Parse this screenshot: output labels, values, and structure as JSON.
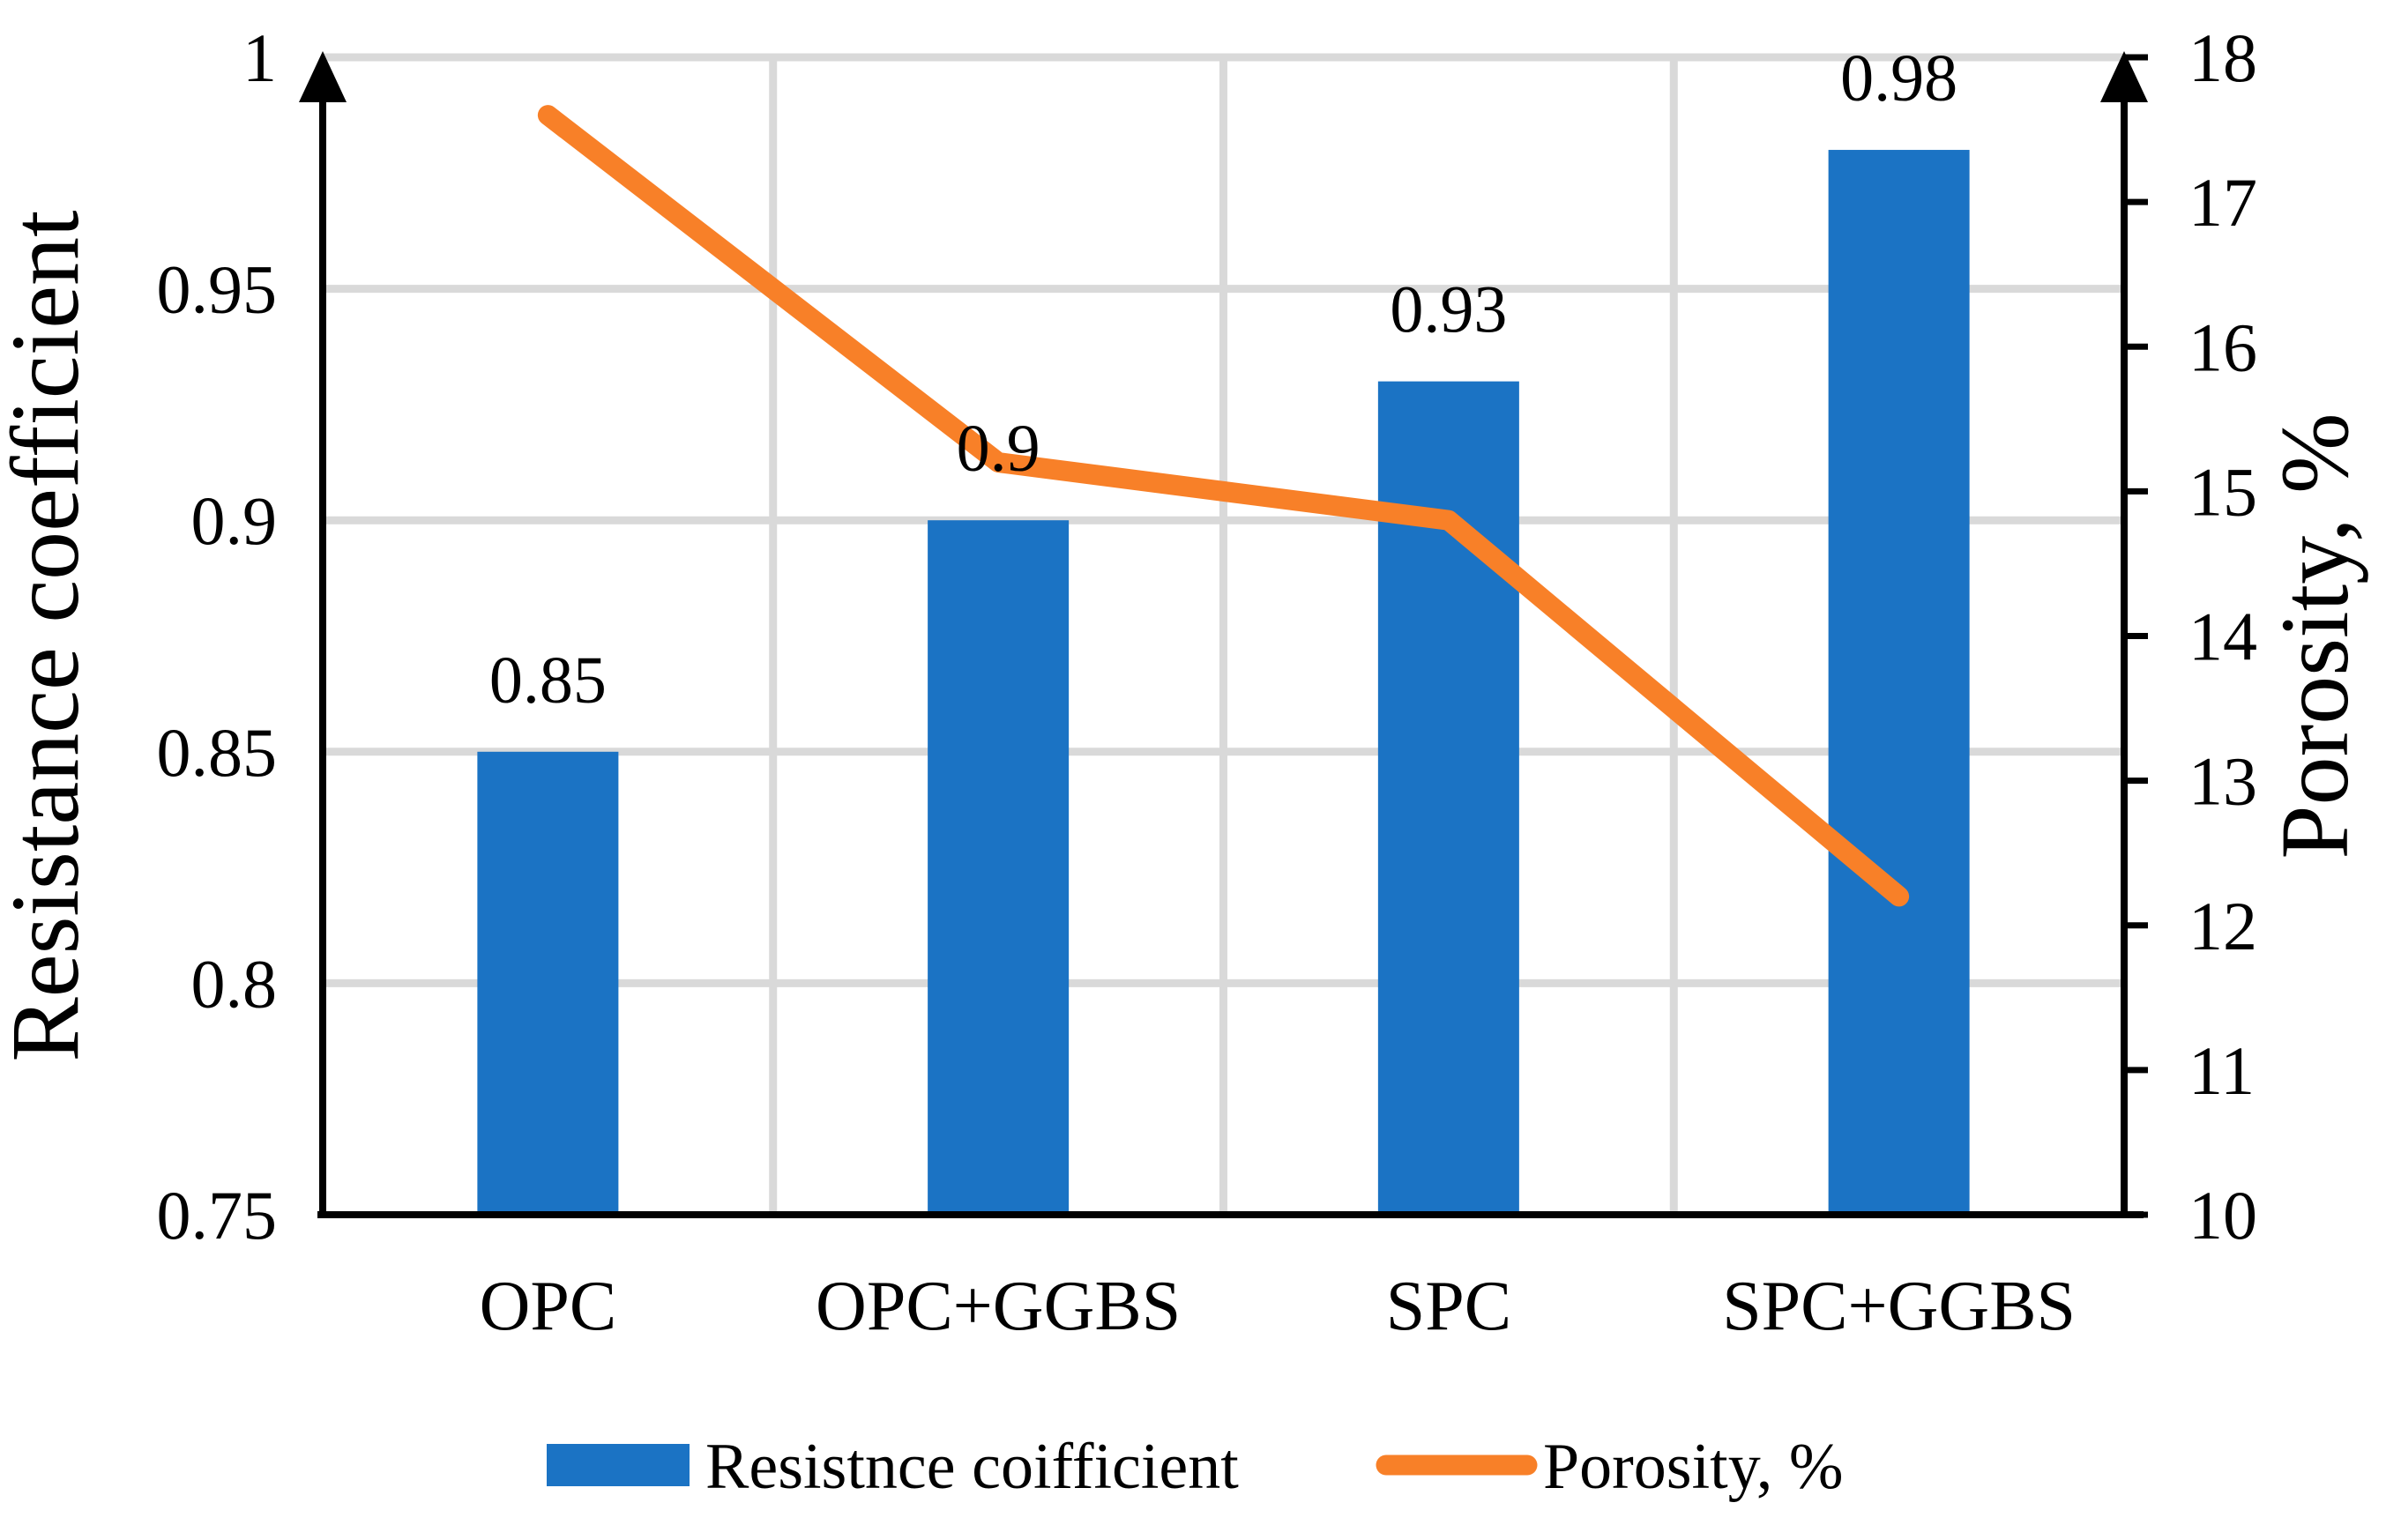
{
  "chart_data": {
    "type": "bar",
    "subtype": "combo-bar-line-dual-axis",
    "categories": [
      "OPC",
      "OPC+GGBS",
      "SPC",
      "SPC+GGBS"
    ],
    "series": [
      {
        "name": "Resistnce coifficient",
        "type": "bar",
        "axis": "left",
        "values": [
          0.85,
          0.9,
          0.93,
          0.98
        ],
        "data_labels": [
          "0.85",
          "0.9",
          "0.93",
          "0.98"
        ],
        "color": "#1B73C4"
      },
      {
        "name": "Porosity, %",
        "type": "line",
        "axis": "right",
        "values": [
          17.6,
          15.2,
          14.8,
          12.2
        ],
        "color": "#F88028"
      }
    ],
    "left_axis": {
      "title": "Resistance coefficient",
      "min": 0.75,
      "max": 1.0,
      "step": 0.05,
      "tick_labels": [
        "0.75",
        "0.8",
        "0.85",
        "0.9",
        "0.95",
        "1"
      ]
    },
    "right_axis": {
      "title": "Porosity, %",
      "min": 10,
      "max": 18,
      "step": 1,
      "tick_labels": [
        "10",
        "11",
        "12",
        "13",
        "14",
        "15",
        "16",
        "17",
        "18"
      ]
    },
    "legend": {
      "position": "bottom",
      "items": [
        {
          "label": "Resistnce coifficient",
          "swatch": "bar",
          "color": "#1B73C4"
        },
        {
          "label": "Porosity, %",
          "swatch": "line",
          "color": "#F88028"
        }
      ]
    },
    "grid": {
      "show": true,
      "color": "#D9D9D9"
    },
    "axis_line_color": "#000000",
    "background": "#FFFFFF"
  }
}
